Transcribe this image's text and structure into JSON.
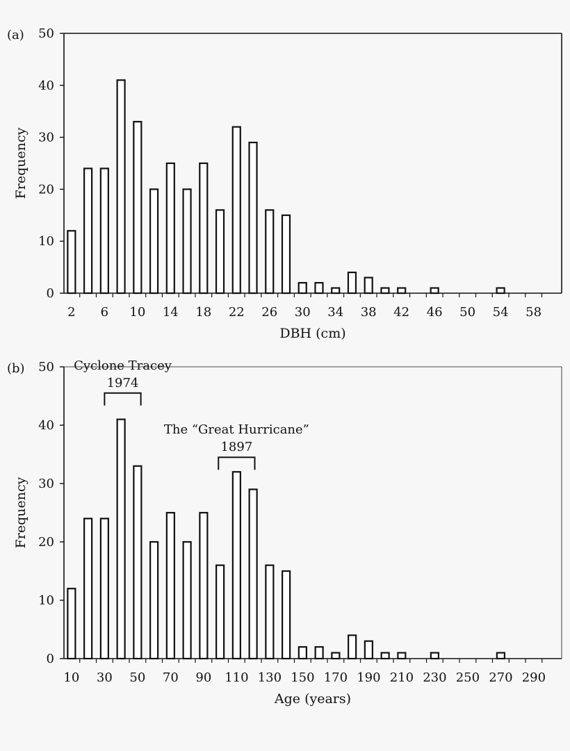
{
  "colors": {
    "background": "#f7f7f7",
    "ink": "#111111",
    "bar_fill": "#ffffff"
  },
  "chart_data": [
    {
      "type": "bar",
      "panel_label": "(a)",
      "title": "",
      "xlabel": "DBH (cm)",
      "ylabel": "Frequency",
      "ylim": [
        0,
        50
      ],
      "yticks": [
        0,
        10,
        20,
        30,
        40,
        50
      ],
      "x_start": 2,
      "x_step": 2,
      "x_end": 60,
      "xtick_labels": [
        "2",
        "6",
        "10",
        "14",
        "18",
        "22",
        "26",
        "30",
        "34",
        "38",
        "42",
        "46",
        "50",
        "54",
        "58"
      ],
      "categories": [
        2,
        4,
        6,
        8,
        10,
        12,
        14,
        16,
        18,
        20,
        22,
        24,
        26,
        28,
        30,
        32,
        34,
        36,
        38,
        40,
        42,
        44,
        46,
        48,
        50,
        52,
        54,
        56,
        58
      ],
      "values": [
        12,
        24,
        24,
        41,
        33,
        20,
        25,
        20,
        25,
        16,
        32,
        29,
        16,
        15,
        2,
        2,
        1,
        4,
        3,
        1,
        1,
        0,
        1,
        0,
        0,
        0,
        1,
        0,
        0
      ],
      "annotations": []
    },
    {
      "type": "bar",
      "panel_label": "(b)",
      "title": "",
      "xlabel": "Age (years)",
      "ylabel": "Frequency",
      "ylim": [
        0,
        50
      ],
      "yticks": [
        0,
        10,
        20,
        30,
        40,
        50
      ],
      "x_start": 10,
      "x_step": 10,
      "x_end": 300,
      "xtick_labels": [
        "10",
        "30",
        "50",
        "70",
        "90",
        "110",
        "130",
        "150",
        "170",
        "190",
        "210",
        "230",
        "250",
        "270",
        "290"
      ],
      "categories": [
        10,
        20,
        30,
        40,
        50,
        60,
        70,
        80,
        90,
        100,
        110,
        120,
        130,
        140,
        150,
        160,
        170,
        180,
        190,
        200,
        210,
        220,
        230,
        240,
        250,
        260,
        270,
        280,
        290
      ],
      "values": [
        12,
        24,
        24,
        41,
        33,
        20,
        25,
        20,
        25,
        16,
        32,
        29,
        16,
        15,
        2,
        2,
        1,
        4,
        3,
        1,
        1,
        0,
        1,
        0,
        0,
        0,
        1,
        0,
        0
      ],
      "annotations": [
        {
          "line1": "Cyclone Tracey",
          "line2": "1974",
          "bracket_from": 35,
          "bracket_to": 57,
          "level": 45.5
        },
        {
          "line1": "The “Great Hurricane”",
          "line2": "1897",
          "bracket_from": 104,
          "bracket_to": 126,
          "level": 34.5
        }
      ]
    }
  ]
}
